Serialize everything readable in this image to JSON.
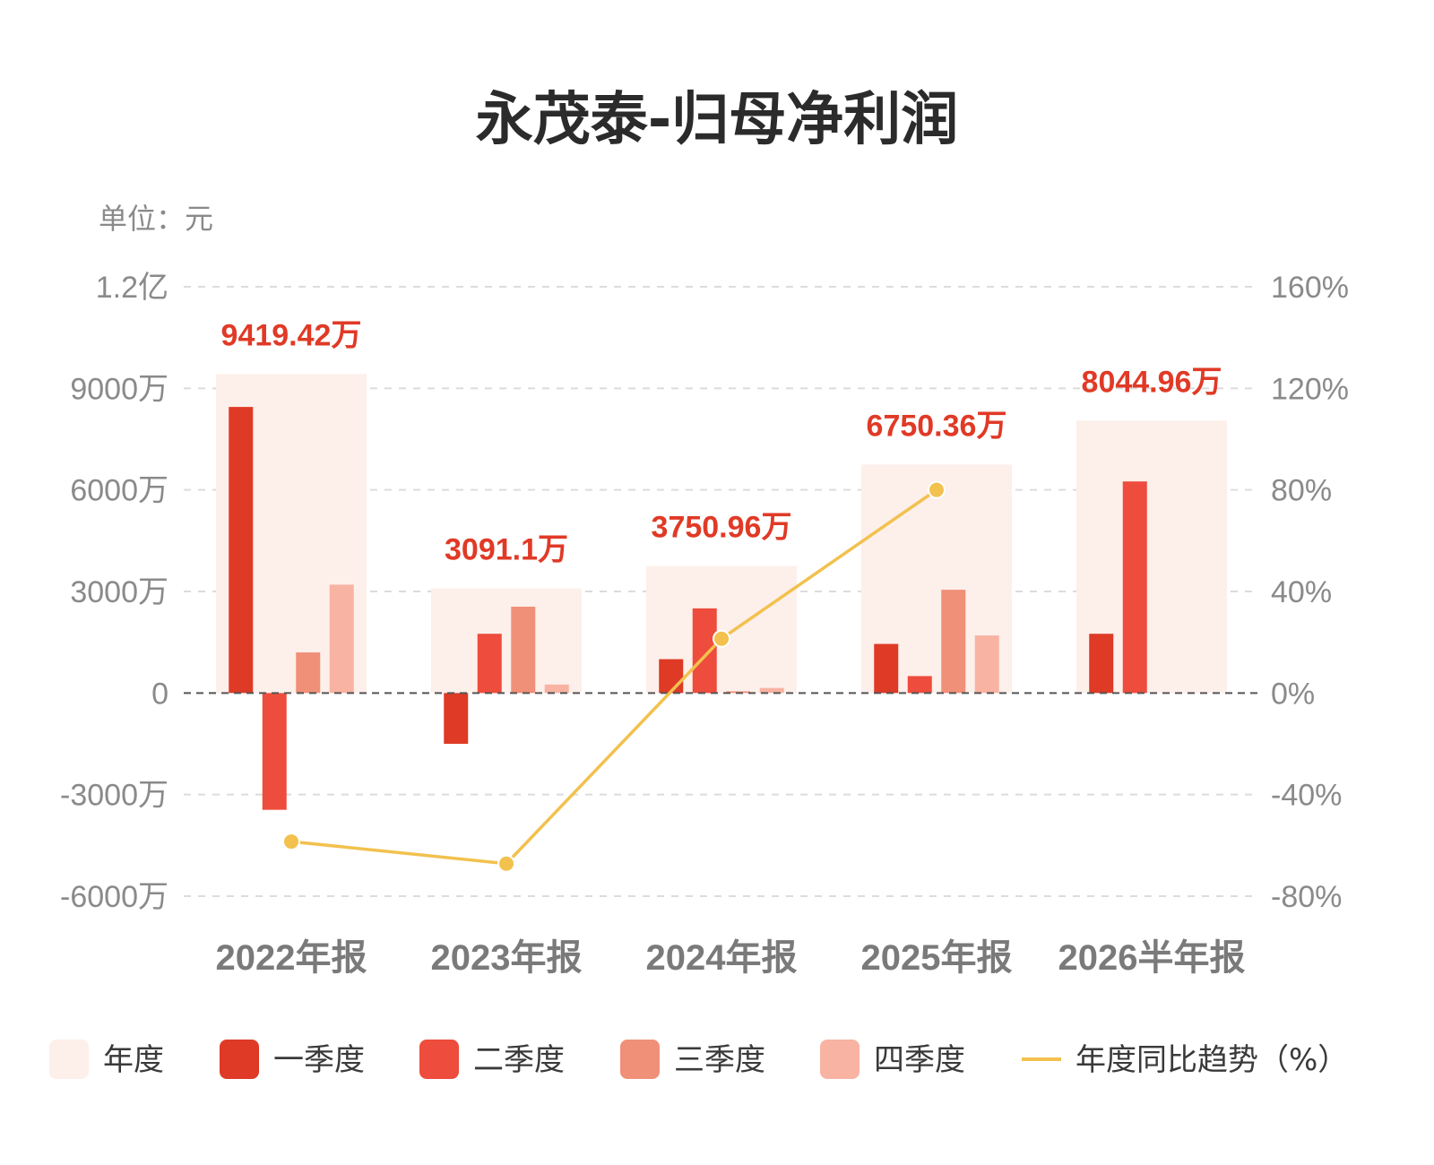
{
  "chart_data": {
    "type": "bar",
    "title": "永茂泰-归母净利润",
    "unit_label": "单位：元",
    "categories": [
      "2022年报",
      "2023年报",
      "2024年报",
      "2025年报",
      "2026半年报"
    ],
    "series": [
      {
        "name": "年度",
        "values": [
          94194200,
          30911000,
          37509600,
          67503600,
          80449600
        ],
        "labels": [
          "9419.42万",
          "3091.1万",
          "3750.96万",
          "6750.36万",
          "8044.96万"
        ]
      },
      {
        "name": "一季度",
        "values": [
          84500000,
          -15000000,
          10000000,
          14500000,
          17500000
        ]
      },
      {
        "name": "二季度",
        "values": [
          -34500000,
          17500000,
          25000000,
          5000000,
          62500000
        ]
      },
      {
        "name": "三季度",
        "values": [
          12000000,
          25500000,
          500000,
          30500000,
          null
        ]
      },
      {
        "name": "四季度",
        "values": [
          32000000,
          2500000,
          1500000,
          17000000,
          null
        ]
      }
    ],
    "line": {
      "name": "年度同比趋势（%）",
      "values": [
        -58.5,
        -67.2,
        21.4,
        80.0,
        null
      ]
    },
    "y_left": {
      "min": -60000000,
      "max": 120000000,
      "ticks": [
        120000000,
        90000000,
        60000000,
        30000000,
        0,
        -30000000,
        -60000000
      ],
      "tick_labels": [
        "1.2亿",
        "9000万",
        "6000万",
        "3000万",
        "0",
        "-3000万",
        "-6000万"
      ]
    },
    "y_right": {
      "min": -80,
      "max": 160,
      "ticks": [
        160,
        120,
        80,
        40,
        0,
        -40,
        -80
      ],
      "tick_labels": [
        "160%",
        "120%",
        "80%",
        "40%",
        "0%",
        "-40%",
        "-80%"
      ]
    },
    "colors": {
      "annual": "#fdefea",
      "q1": "#de3a26",
      "q2": "#ee4c3c",
      "q3": "#f09078",
      "q4": "#f8b3a3",
      "line": "#f2c14e",
      "total_label": "#e03a26"
    },
    "grid": true,
    "legend_position": "bottom"
  }
}
